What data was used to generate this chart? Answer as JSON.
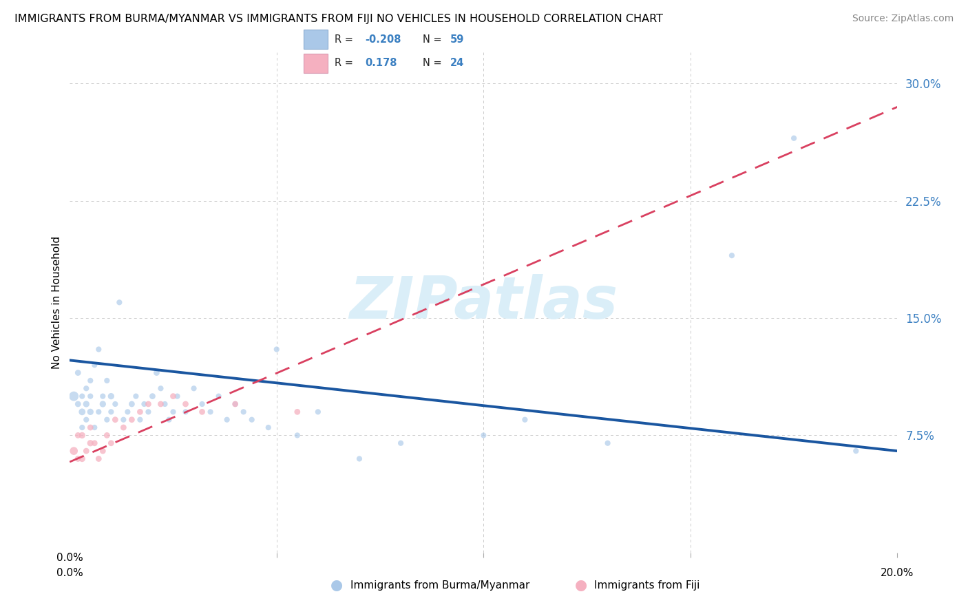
{
  "title": "IMMIGRANTS FROM BURMA/MYANMAR VS IMMIGRANTS FROM FIJI NO VEHICLES IN HOUSEHOLD CORRELATION CHART",
  "source": "Source: ZipAtlas.com",
  "ylabel": "No Vehicles in Household",
  "xlim": [
    0.0,
    0.2
  ],
  "ylim": [
    0.0,
    0.32
  ],
  "ytick_vals": [
    0.075,
    0.15,
    0.225,
    0.3
  ],
  "ytick_labels": [
    "7.5%",
    "15.0%",
    "22.5%",
    "30.0%"
  ],
  "xtick_vals": [
    0.0,
    0.05,
    0.1,
    0.15,
    0.2
  ],
  "R_burma": -0.208,
  "N_burma": 59,
  "R_fiji": 0.178,
  "N_fiji": 24,
  "color_burma": "#aac8e8",
  "color_fiji": "#f5b0c0",
  "line_color_burma": "#1a56a0",
  "line_color_fiji": "#d94060",
  "legend_label_burma": "Immigrants from Burma/Myanmar",
  "legend_label_fiji": "Immigrants from Fiji",
  "grid_color": "#cccccc",
  "watermark_color": "#daeef8",
  "tick_label_color": "#3a7fc1",
  "background": "#ffffff",
  "burma_x": [
    0.001,
    0.002,
    0.002,
    0.003,
    0.003,
    0.003,
    0.004,
    0.004,
    0.004,
    0.005,
    0.005,
    0.005,
    0.006,
    0.006,
    0.007,
    0.007,
    0.008,
    0.008,
    0.009,
    0.009,
    0.01,
    0.01,
    0.011,
    0.012,
    0.013,
    0.014,
    0.015,
    0.016,
    0.017,
    0.018,
    0.019,
    0.02,
    0.021,
    0.022,
    0.023,
    0.024,
    0.025,
    0.026,
    0.028,
    0.03,
    0.032,
    0.034,
    0.036,
    0.038,
    0.04,
    0.042,
    0.044,
    0.048,
    0.05,
    0.055,
    0.06,
    0.07,
    0.08,
    0.1,
    0.11,
    0.13,
    0.16,
    0.175,
    0.19
  ],
  "burma_y": [
    0.1,
    0.115,
    0.095,
    0.09,
    0.08,
    0.1,
    0.085,
    0.095,
    0.105,
    0.09,
    0.1,
    0.11,
    0.12,
    0.08,
    0.13,
    0.09,
    0.095,
    0.1,
    0.085,
    0.11,
    0.09,
    0.1,
    0.095,
    0.16,
    0.085,
    0.09,
    0.095,
    0.1,
    0.085,
    0.095,
    0.09,
    0.1,
    0.115,
    0.105,
    0.095,
    0.085,
    0.09,
    0.1,
    0.09,
    0.105,
    0.095,
    0.09,
    0.1,
    0.085,
    0.095,
    0.09,
    0.085,
    0.08,
    0.13,
    0.075,
    0.09,
    0.06,
    0.07,
    0.075,
    0.085,
    0.07,
    0.19,
    0.265,
    0.065
  ],
  "burma_sizes": [
    100,
    40,
    40,
    50,
    35,
    35,
    35,
    45,
    35,
    45,
    35,
    35,
    35,
    35,
    35,
    35,
    45,
    35,
    35,
    35,
    35,
    45,
    35,
    35,
    35,
    35,
    40,
    35,
    35,
    35,
    35,
    40,
    40,
    35,
    35,
    35,
    35,
    35,
    35,
    35,
    35,
    35,
    35,
    35,
    35,
    35,
    35,
    35,
    35,
    35,
    35,
    35,
    35,
    35,
    35,
    35,
    35,
    35,
    35
  ],
  "burma_line_x": [
    0.0,
    0.2
  ],
  "burma_line_y": [
    0.123,
    0.065
  ],
  "fiji_x": [
    0.001,
    0.002,
    0.002,
    0.003,
    0.003,
    0.004,
    0.005,
    0.005,
    0.006,
    0.007,
    0.008,
    0.009,
    0.01,
    0.011,
    0.013,
    0.015,
    0.017,
    0.019,
    0.022,
    0.025,
    0.028,
    0.032,
    0.04,
    0.055
  ],
  "fiji_y": [
    0.065,
    0.06,
    0.075,
    0.06,
    0.075,
    0.065,
    0.07,
    0.08,
    0.07,
    0.06,
    0.065,
    0.075,
    0.07,
    0.085,
    0.08,
    0.085,
    0.09,
    0.095,
    0.095,
    0.1,
    0.095,
    0.09,
    0.095,
    0.09
  ],
  "fiji_sizes": [
    70,
    40,
    40,
    45,
    45,
    40,
    45,
    40,
    40,
    40,
    40,
    40,
    40,
    40,
    40,
    40,
    40,
    40,
    40,
    40,
    40,
    40,
    40,
    40
  ],
  "fiji_line_x": [
    0.0,
    0.2
  ],
  "fiji_line_y": [
    0.058,
    0.285
  ]
}
